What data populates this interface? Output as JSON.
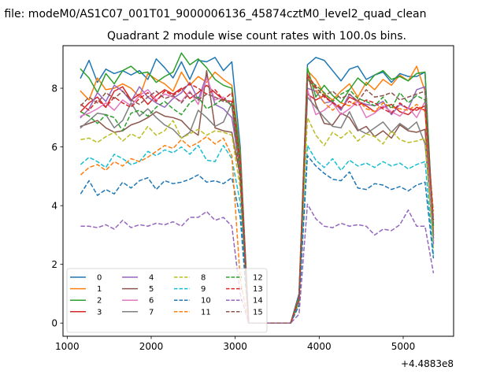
{
  "figure": {
    "suptitle": "n file: modeM0/AS1C07_001T01_9000006136_45874cztM0_level2_quad_clean"
  },
  "chart_data": {
    "type": "line",
    "title": "Quadrant 2 module wise count rates with 100.0s bins.",
    "xlabel": "",
    "ylabel": "",
    "x_offset_label": "+4.4883e8",
    "x_offset": 448830000,
    "xlim": [
      448830950,
      448835600
    ],
    "ylim": [
      -0.45,
      9.45
    ],
    "xticks": [
      448831000,
      448832000,
      448833000,
      448834000,
      448835000
    ],
    "xtick_labels": [
      "1000",
      "2000",
      "3000",
      "4000",
      "5000"
    ],
    "yticks": [
      0,
      2,
      4,
      6,
      8
    ],
    "ytick_labels": [
      "0",
      "2",
      "4",
      "6",
      "8"
    ],
    "grid": false,
    "legend": {
      "position": "lower-left",
      "ncol": 4
    },
    "x": [
      448831160,
      448831260,
      448831360,
      448831460,
      448831560,
      448831660,
      448831760,
      448831860,
      448831960,
      448832060,
      448832160,
      448832260,
      448832360,
      448832460,
      448832560,
      448832660,
      448832760,
      448832860,
      448832960,
      448833060,
      448833160,
      448833260,
      448833360,
      448833460,
      448833560,
      448833660,
      448833760,
      448833860,
      448833960,
      448834060,
      448834160,
      448834260,
      448834360,
      448834460,
      448834560,
      448834660,
      448834760,
      448834860,
      448834960,
      448835060,
      448835160,
      448835260,
      448835360
    ],
    "series": [
      {
        "name": "0",
        "color": "#1f77b4",
        "dash": "solid",
        "values": [
          8.35,
          8.95,
          8.2,
          8.65,
          8.5,
          8.6,
          8.45,
          8.6,
          8.3,
          9.0,
          8.7,
          8.35,
          8.9,
          8.3,
          8.95,
          8.9,
          9.05,
          8.6,
          8.9,
          6.0,
          0.0,
          0.0,
          0.0,
          0.0,
          0.0,
          0.0,
          1.0,
          8.8,
          9.05,
          8.95,
          8.6,
          8.25,
          8.65,
          8.75,
          8.3,
          8.45,
          8.55,
          8.2,
          8.5,
          8.4,
          8.4,
          8.55,
          2.9
        ]
      },
      {
        "name": "1",
        "color": "#ff7f0e",
        "dash": "solid",
        "values": [
          7.9,
          7.6,
          8.35,
          7.95,
          8.0,
          8.15,
          8.0,
          7.7,
          8.5,
          8.3,
          8.15,
          7.9,
          8.55,
          8.1,
          8.4,
          8.2,
          8.55,
          8.3,
          8.1,
          5.8,
          0.0,
          0.0,
          0.0,
          0.0,
          0.0,
          0.0,
          0.9,
          8.6,
          8.3,
          7.8,
          7.6,
          7.9,
          8.15,
          7.7,
          8.2,
          7.95,
          8.3,
          8.1,
          8.45,
          8.25,
          8.75,
          7.9,
          3.1
        ]
      },
      {
        "name": "2",
        "color": "#2ca02c",
        "dash": "solid",
        "values": [
          8.65,
          8.35,
          7.85,
          8.5,
          8.15,
          8.6,
          8.75,
          8.5,
          8.55,
          8.2,
          8.4,
          8.55,
          9.2,
          8.8,
          9.0,
          8.7,
          8.3,
          8.1,
          8.0,
          5.7,
          0.0,
          0.0,
          0.0,
          0.0,
          0.0,
          0.0,
          0.9,
          8.7,
          7.7,
          8.1,
          7.75,
          7.5,
          7.95,
          8.35,
          8.1,
          8.45,
          8.6,
          8.3,
          8.4,
          8.25,
          8.5,
          8.55,
          3.0
        ]
      },
      {
        "name": "3",
        "color": "#d62728",
        "dash": "solid",
        "values": [
          7.2,
          7.5,
          7.7,
          7.35,
          7.9,
          8.05,
          7.6,
          7.8,
          7.45,
          7.75,
          7.95,
          7.8,
          8.0,
          7.65,
          7.85,
          8.1,
          7.85,
          7.6,
          7.55,
          5.5,
          0.0,
          0.0,
          0.0,
          0.0,
          0.0,
          0.0,
          0.8,
          7.8,
          7.6,
          7.75,
          7.5,
          7.3,
          7.7,
          7.55,
          7.4,
          7.2,
          7.35,
          7.45,
          7.2,
          7.1,
          7.35,
          7.25,
          3.0
        ]
      },
      {
        "name": "4",
        "color": "#9467bd",
        "dash": "solid",
        "values": [
          7.0,
          7.3,
          7.85,
          7.55,
          8.1,
          7.9,
          7.55,
          8.05,
          7.7,
          7.5,
          7.35,
          7.65,
          7.85,
          8.2,
          7.6,
          8.45,
          7.45,
          7.3,
          7.0,
          5.2,
          0.0,
          0.0,
          0.0,
          0.0,
          0.0,
          0.0,
          0.8,
          8.0,
          7.9,
          7.5,
          7.55,
          7.25,
          7.8,
          7.55,
          7.45,
          7.4,
          7.55,
          7.1,
          7.45,
          7.3,
          7.95,
          8.05,
          2.7
        ]
      },
      {
        "name": "5",
        "color": "#8c564b",
        "dash": "solid",
        "values": [
          6.7,
          6.8,
          6.9,
          6.65,
          6.5,
          6.55,
          6.75,
          6.85,
          7.0,
          7.2,
          7.05,
          7.0,
          6.9,
          6.6,
          6.4,
          8.6,
          6.65,
          6.55,
          6.5,
          5.0,
          0.0,
          0.0,
          0.0,
          0.0,
          0.0,
          0.0,
          0.8,
          8.5,
          7.45,
          6.8,
          6.75,
          7.15,
          7.0,
          6.55,
          6.7,
          6.35,
          6.55,
          6.3,
          6.75,
          6.55,
          6.5,
          6.6,
          2.8
        ]
      },
      {
        "name": "6",
        "color": "#e377c2",
        "dash": "solid",
        "values": [
          7.05,
          7.15,
          7.3,
          7.5,
          7.25,
          7.6,
          7.4,
          7.75,
          7.95,
          7.6,
          7.8,
          7.7,
          7.55,
          7.9,
          7.45,
          8.35,
          7.6,
          7.7,
          7.4,
          5.2,
          0.0,
          0.0,
          0.0,
          0.0,
          0.0,
          0.0,
          0.8,
          7.95,
          7.1,
          7.25,
          7.5,
          7.1,
          7.3,
          7.55,
          7.0,
          7.15,
          7.4,
          7.2,
          7.05,
          7.35,
          7.0,
          7.55,
          2.8
        ]
      },
      {
        "name": "7",
        "color": "#7f7f7f",
        "dash": "solid",
        "values": [
          6.65,
          6.9,
          7.15,
          7.1,
          6.65,
          6.9,
          7.5,
          7.05,
          7.3,
          7.0,
          6.75,
          6.6,
          6.3,
          6.5,
          7.25,
          7.0,
          6.7,
          6.85,
          7.5,
          5.4,
          0.0,
          0.0,
          0.0,
          0.0,
          0.0,
          0.0,
          0.8,
          7.7,
          7.35,
          7.0,
          6.7,
          6.65,
          7.2,
          6.6,
          6.45,
          6.65,
          6.85,
          6.5,
          6.8,
          6.6,
          6.85,
          6.1,
          2.9
        ]
      },
      {
        "name": "8",
        "color": "#bcbd22",
        "dash": "dashed",
        "values": [
          6.25,
          6.3,
          6.15,
          6.35,
          6.5,
          6.2,
          6.45,
          6.3,
          6.7,
          6.4,
          6.55,
          6.9,
          6.3,
          6.45,
          6.6,
          6.4,
          6.55,
          6.5,
          6.4,
          4.6,
          0.0,
          0.0,
          0.0,
          0.0,
          0.0,
          0.0,
          0.7,
          7.0,
          6.4,
          6.05,
          6.5,
          6.3,
          6.55,
          6.2,
          6.45,
          6.35,
          6.1,
          6.55,
          6.25,
          6.15,
          6.2,
          6.3,
          2.5
        ]
      },
      {
        "name": "9",
        "color": "#17becf",
        "dash": "dashed",
        "values": [
          5.4,
          5.65,
          5.5,
          5.3,
          5.75,
          5.6,
          5.4,
          5.5,
          5.85,
          5.7,
          5.9,
          5.8,
          6.0,
          5.75,
          6.05,
          5.55,
          5.5,
          6.05,
          5.6,
          4.1,
          0.0,
          0.0,
          0.0,
          0.0,
          0.0,
          0.0,
          0.6,
          6.05,
          5.55,
          5.3,
          5.6,
          5.2,
          5.55,
          5.35,
          5.45,
          5.3,
          5.5,
          5.35,
          5.45,
          5.25,
          5.4,
          5.5,
          2.3
        ]
      },
      {
        "name": "10",
        "color": "#1f77b4",
        "dash": "dashed",
        "values": [
          4.4,
          4.85,
          4.35,
          4.55,
          4.4,
          4.8,
          4.6,
          4.85,
          4.95,
          4.55,
          4.85,
          4.75,
          4.8,
          4.9,
          5.05,
          4.8,
          4.85,
          4.75,
          4.95,
          3.6,
          0.0,
          0.0,
          0.0,
          0.0,
          0.0,
          0.0,
          0.6,
          5.7,
          5.35,
          5.1,
          4.9,
          4.85,
          5.15,
          4.6,
          4.55,
          4.75,
          4.7,
          4.55,
          4.65,
          4.5,
          4.7,
          4.8,
          2.2
        ]
      },
      {
        "name": "11",
        "color": "#ff7f0e",
        "dash": "dashed",
        "values": [
          5.05,
          5.3,
          5.4,
          5.2,
          5.5,
          5.35,
          5.6,
          5.5,
          5.65,
          5.85,
          6.05,
          5.95,
          6.25,
          6.0,
          6.15,
          6.35,
          6.1,
          6.3,
          5.7,
          1.5,
          0.0,
          0.0,
          0.0,
          0.0,
          0.0,
          0.0,
          0.9,
          8.45,
          7.95,
          7.5,
          7.25,
          7.5,
          7.4,
          7.6,
          7.3,
          7.2,
          7.5,
          7.35,
          7.3,
          7.25,
          7.45,
          7.2,
          3.8
        ]
      },
      {
        "name": "12",
        "color": "#2ca02c",
        "dash": "dashed",
        "values": [
          7.2,
          7.05,
          6.8,
          7.1,
          7.0,
          6.55,
          7.15,
          7.25,
          7.05,
          7.35,
          7.55,
          7.3,
          7.1,
          7.5,
          7.7,
          7.3,
          7.45,
          7.65,
          7.4,
          5.2,
          0.0,
          0.0,
          0.0,
          0.0,
          0.0,
          0.0,
          0.8,
          8.3,
          8.1,
          7.85,
          7.55,
          7.8,
          7.95,
          7.65,
          7.55,
          7.4,
          7.7,
          7.3,
          7.85,
          7.5,
          7.75,
          7.6,
          3.3
        ]
      },
      {
        "name": "13",
        "color": "#d62728",
        "dash": "dashed",
        "values": [
          7.45,
          7.25,
          7.6,
          7.35,
          7.7,
          7.5,
          7.35,
          7.65,
          7.85,
          7.55,
          7.9,
          7.75,
          7.95,
          8.15,
          8.0,
          7.8,
          7.95,
          7.6,
          7.85,
          5.4,
          0.0,
          0.0,
          0.0,
          0.0,
          0.0,
          0.0,
          0.8,
          8.45,
          8.05,
          7.7,
          7.5,
          7.35,
          7.55,
          7.4,
          7.6,
          7.5,
          7.3,
          7.15,
          7.5,
          7.3,
          7.25,
          7.4,
          3.5
        ]
      },
      {
        "name": "14",
        "color": "#9467bd",
        "dash": "dashed",
        "values": [
          3.3,
          3.3,
          3.25,
          3.35,
          3.2,
          3.5,
          3.25,
          3.35,
          3.3,
          3.4,
          3.35,
          3.45,
          3.3,
          3.6,
          3.6,
          3.8,
          3.5,
          3.6,
          3.3,
          1.0,
          0.0,
          0.0,
          0.0,
          0.0,
          0.0,
          0.0,
          0.3,
          4.05,
          3.55,
          3.3,
          3.25,
          3.4,
          3.3,
          3.35,
          3.3,
          3.0,
          3.2,
          3.15,
          3.35,
          3.85,
          3.3,
          3.3,
          1.7
        ]
      },
      {
        "name": "15",
        "color": "#8c564b",
        "dash": "dashed",
        "values": [
          7.4,
          7.7,
          7.5,
          7.85,
          7.65,
          7.9,
          7.6,
          7.45,
          7.7,
          7.9,
          7.65,
          7.75,
          7.5,
          7.85,
          7.6,
          7.8,
          7.7,
          7.55,
          7.5,
          4.8,
          0.0,
          0.0,
          0.0,
          0.0,
          0.0,
          0.0,
          0.9,
          8.3,
          8.0,
          7.75,
          7.9,
          7.65,
          7.8,
          7.55,
          7.95,
          7.7,
          7.75,
          7.85,
          7.6,
          7.7,
          7.8,
          7.9,
          3.4
        ]
      }
    ]
  }
}
